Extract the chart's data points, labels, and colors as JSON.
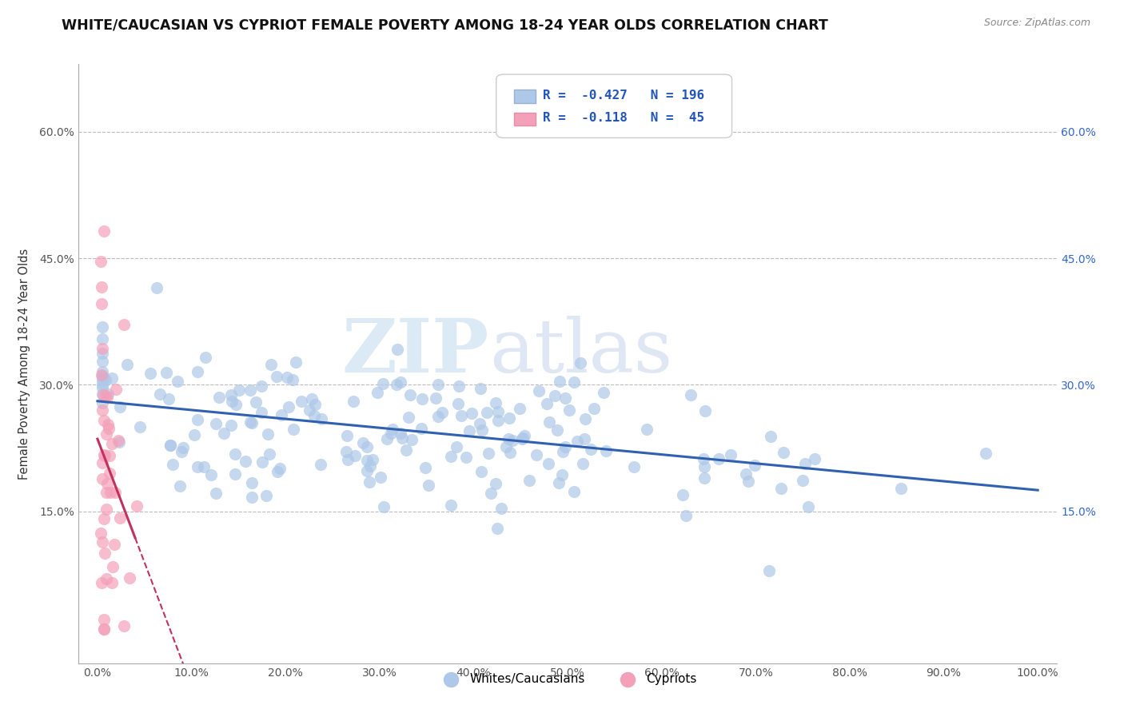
{
  "title": "WHITE/CAUCASIAN VS CYPRIOT FEMALE POVERTY AMONG 18-24 YEAR OLDS CORRELATION CHART",
  "source": "Source: ZipAtlas.com",
  "ylabel": "Female Poverty Among 18-24 Year Olds",
  "xlim": [
    -0.02,
    1.02
  ],
  "ylim": [
    -0.03,
    0.68
  ],
  "xticks": [
    0.0,
    0.1,
    0.2,
    0.3,
    0.4,
    0.5,
    0.6,
    0.7,
    0.8,
    0.9,
    1.0
  ],
  "xticklabels": [
    "0.0%",
    "10.0%",
    "20.0%",
    "30.0%",
    "40.0%",
    "50.0%",
    "60.0%",
    "70.0%",
    "80.0%",
    "90.0%",
    "100.0%"
  ],
  "yticks": [
    0.0,
    0.15,
    0.3,
    0.45,
    0.6
  ],
  "yticklabels": [
    "",
    "15.0%",
    "30.0%",
    "45.0%",
    "60.0%"
  ],
  "right_yticks": [
    0.15,
    0.3,
    0.45,
    0.6
  ],
  "right_yticklabels": [
    "15.0%",
    "30.0%",
    "45.0%",
    "60.0%"
  ],
  "white_R": -0.427,
  "white_N": 196,
  "cypriot_R": -0.118,
  "cypriot_N": 45,
  "white_color": "#adc8e8",
  "cypriot_color": "#f4a0b8",
  "white_line_color": "#3060b0",
  "cypriot_line_color": "#c03060",
  "watermark_zip": "ZIP",
  "watermark_atlas": "atlas",
  "legend_label_white": "Whites/Caucasians",
  "legend_label_cypriot": "Cypriots",
  "background_color": "#ffffff",
  "grid_color": "#bbbbbb",
  "title_fontsize": 12.5,
  "axis_label_fontsize": 10.5,
  "tick_fontsize": 10,
  "seed": 7
}
